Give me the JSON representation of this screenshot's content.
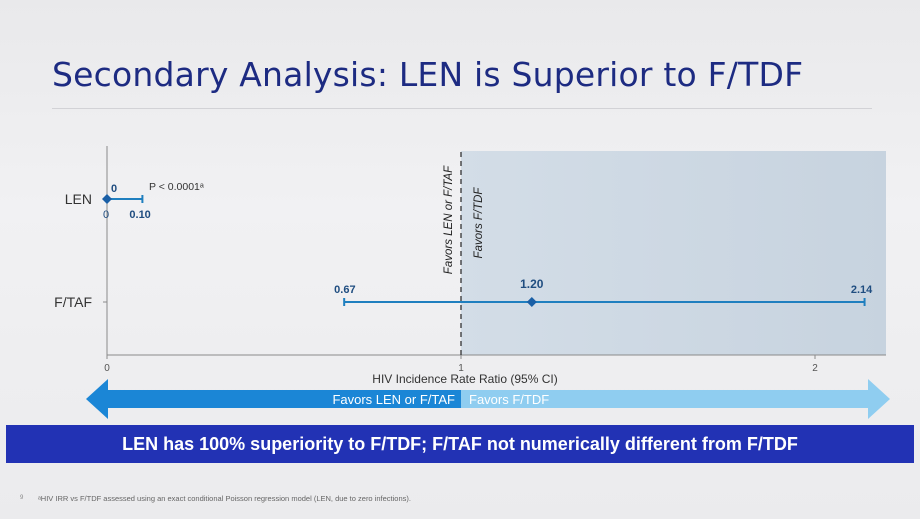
{
  "slide": {
    "title": "Secondary Analysis: LEN is Superior to F/TDF",
    "conclusion": "LEN has 100% superiority to F/TDF; F/TAF not numerically different from F/TDF",
    "footnote": "ᵃHIV IRR vs F/TDF assessed using an exact conditional Poisson regression model (LEN, due to zero infections).",
    "slide_number": "9"
  },
  "chart_data": {
    "type": "forest",
    "xlabel": "HIV Incidence Rate Ratio (95% CI)",
    "xlim": [
      0,
      2.2
    ],
    "xticks": [
      0,
      1,
      2
    ],
    "reference_line": 1,
    "region_labels": {
      "left": "Favors LEN or F/TAF",
      "right": "Favors F/TDF"
    },
    "arrow_labels": {
      "left": "Favors LEN or F/TAF",
      "right": "Favors F/TDF"
    },
    "rows": [
      {
        "label": "LEN",
        "estimate": 0,
        "lower": 0,
        "upper": 0.1,
        "estimate_label": "0",
        "lower_label": "0",
        "upper_label": "0.10",
        "annotation": "P < 0.0001ᵃ"
      },
      {
        "label": "F/TAF",
        "estimate": 1.2,
        "lower": 0.67,
        "upper": 2.14,
        "estimate_label": "1.20",
        "lower_label": "0.67",
        "upper_label": "2.14"
      }
    ],
    "colors": {
      "ci": "#1f7fbf",
      "shade": "#cfd9e3",
      "arrow_left": "#1b86d6",
      "arrow_right": "#8fcdf0",
      "value_text": "#1f4d80"
    }
  }
}
